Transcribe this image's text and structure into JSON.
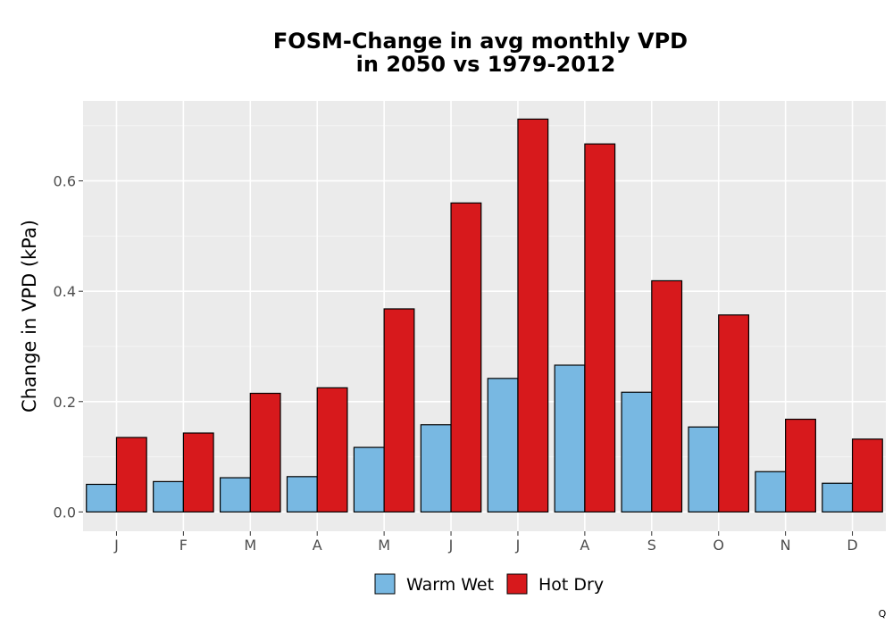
{
  "chart_data": {
    "type": "bar",
    "title_lines": [
      "FOSM-Change in avg monthly VPD",
      "in 2050 vs 1979-2012"
    ],
    "xlabel": "",
    "ylabel": "Change in VPD (kPa)",
    "categories": [
      "J",
      "F",
      "M",
      "A",
      "M",
      "J",
      "J",
      "A",
      "S",
      "O",
      "N",
      "D"
    ],
    "series": [
      {
        "name": "Warm Wet",
        "color": "#78b8e2",
        "values": [
          0.05,
          0.055,
          0.062,
          0.064,
          0.117,
          0.158,
          0.242,
          0.266,
          0.217,
          0.154,
          0.073,
          0.052
        ]
      },
      {
        "name": "Hot Dry",
        "color": "#d7191c",
        "values": [
          0.135,
          0.143,
          0.215,
          0.225,
          0.368,
          0.56,
          0.712,
          0.667,
          0.419,
          0.357,
          0.168,
          0.132
        ]
      }
    ],
    "yticks": [
      0.0,
      0.2,
      0.4,
      0.6
    ],
    "ytick_labels": [
      "0.0",
      "0.2",
      "0.4",
      "0.6"
    ],
    "ylim": [
      -0.035,
      0.745
    ],
    "grid": true,
    "legend_position": "bottom"
  },
  "corner_mark": "Q"
}
